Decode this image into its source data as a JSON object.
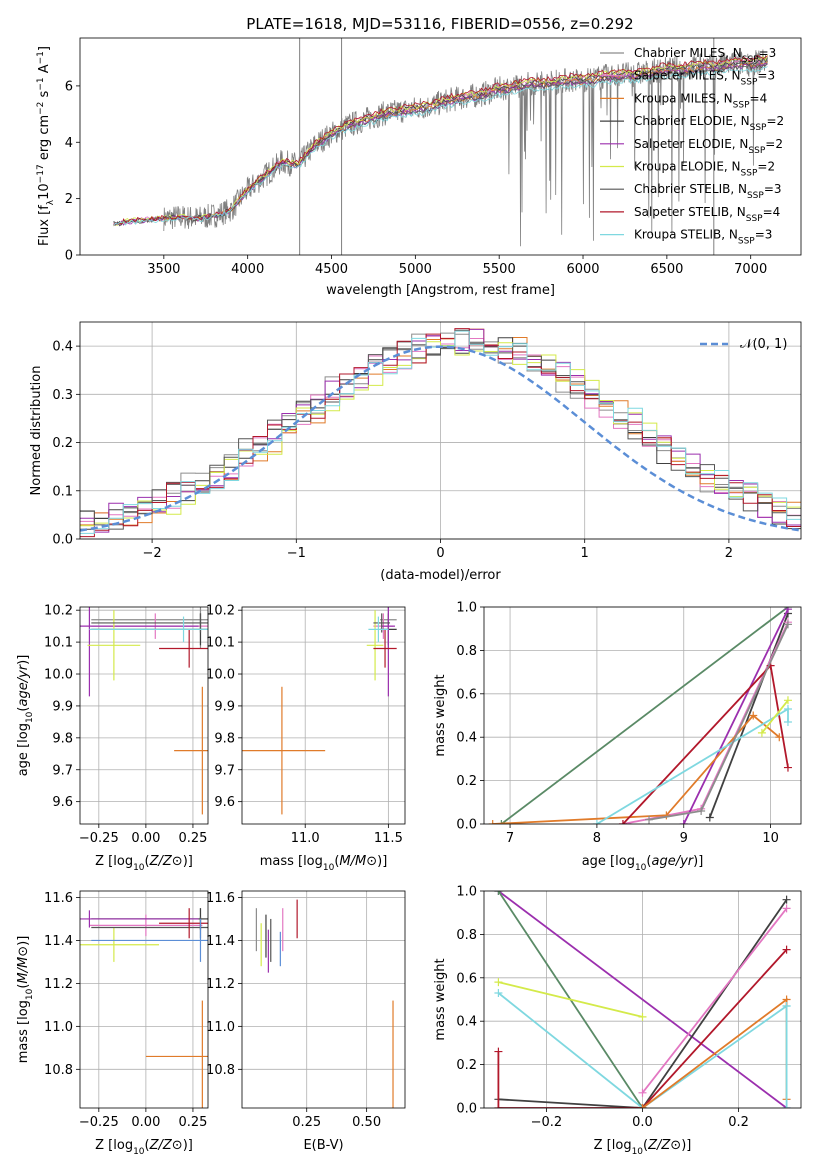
{
  "title": "PLATE=1618, MJD=53116, FIBERID=0556, z=0.292",
  "colors": {
    "chabrier_miles": "#8c8c8c",
    "salpeter_miles": "#e377c2",
    "kroupa_miles": "#e07b2a",
    "chabrier_elodie": "#404040",
    "salpeter_elodie": "#9b2fae",
    "kroupa_elodie": "#d4ea4a",
    "chabrier_stelib": "#555555",
    "salpeter_stelib": "#b2182b",
    "kroupa_stelib": "#7fd8e0",
    "gaussian": "#5b8ed6",
    "green_line": "#5a8a66",
    "grid": "#b0b0b0"
  },
  "chart_data": [
    {
      "id": "spectrum",
      "type": "line",
      "xlabel": "wavelength [Angstrom, rest frame]",
      "ylabel": "Flux [f_λ 10^-17 erg cm^-2 s^-1 A^-1]",
      "xlim": [
        3000,
        7300
      ],
      "ylim": [
        0,
        7.7
      ],
      "xticks": [
        "3500",
        "4000",
        "4500",
        "5000",
        "5500",
        "6000",
        "6500",
        "7000"
      ],
      "yticks": [
        "0",
        "2",
        "4",
        "6"
      ],
      "legend_position": "top-right",
      "legend": [
        {
          "label": "Chabrier MILES, N_SSP=3",
          "color_key": "chabrier_miles"
        },
        {
          "label": "Salpeter MILES, N_SSP=3",
          "color_key": "salpeter_miles"
        },
        {
          "label": "Kroupa MILES, N_SSP=4",
          "color_key": "kroupa_miles"
        },
        {
          "label": "Chabrier ELODIE, N_SSP=2",
          "color_key": "chabrier_elodie"
        },
        {
          "label": "Salpeter ELODIE, N_SSP=2",
          "color_key": "salpeter_elodie"
        },
        {
          "label": "Kroupa ELODIE, N_SSP=2",
          "color_key": "kroupa_elodie"
        },
        {
          "label": "Chabrier STELIB, N_SSP=3",
          "color_key": "chabrier_stelib"
        },
        {
          "label": "Salpeter STELIB, N_SSP=4",
          "color_key": "salpeter_stelib"
        },
        {
          "label": "Kroupa STELIB, N_SSP=3",
          "color_key": "kroupa_stelib"
        }
      ],
      "model_envelope": {
        "x": [
          3200,
          3300,
          3400,
          3500,
          3600,
          3700,
          3800,
          3900,
          4000,
          4100,
          4200,
          4300,
          4400,
          4500,
          4600,
          4700,
          4800,
          4900,
          5000,
          5100,
          5200,
          5300,
          5400,
          5500,
          5600,
          5700,
          5800,
          5900,
          6000,
          6100,
          6200,
          6300,
          6400,
          6500,
          6600,
          6700,
          6800,
          6900,
          7000,
          7100
        ],
        "y": [
          1.1,
          1.2,
          1.25,
          1.3,
          1.35,
          1.3,
          1.4,
          1.6,
          2.3,
          2.8,
          3.3,
          3.2,
          3.9,
          4.3,
          4.6,
          4.8,
          5.0,
          5.1,
          5.2,
          5.3,
          5.5,
          5.6,
          5.7,
          5.9,
          6.0,
          6.1,
          6.1,
          6.2,
          6.2,
          6.3,
          6.4,
          6.4,
          6.5,
          6.6,
          6.6,
          6.7,
          6.7,
          6.8,
          6.8,
          6.9
        ]
      },
      "data_range_x": [
        3500,
        7100
      ],
      "spikes_x": [
        4310,
        4560,
        6780
      ]
    },
    {
      "id": "residual-hist",
      "type": "line",
      "xlabel": "(data-model)/error",
      "ylabel": "Normed distribution",
      "xlim": [
        -2.5,
        2.5
      ],
      "ylim": [
        0,
        0.45
      ],
      "xticks": [
        "−2",
        "−1",
        "0",
        "1",
        "2"
      ],
      "yticks": [
        "0.0",
        "0.1",
        "0.2",
        "0.3",
        "0.4"
      ],
      "legend_position": "top-right",
      "legend_label": "𝒩(0, 1)",
      "bin_width": 0.1,
      "series_color_keys": [
        "chabrier_miles",
        "salpeter_miles",
        "kroupa_miles",
        "chabrier_elodie",
        "salpeter_elodie",
        "kroupa_elodie",
        "chabrier_stelib",
        "salpeter_stelib",
        "kroupa_stelib"
      ]
    },
    {
      "id": "age-vs-Z",
      "type": "scatter",
      "xlabel": "Z [log10(Z/Z⊙)]",
      "ylabel": "age [log10(age/yr)]",
      "xlim": [
        -0.35,
        0.33
      ],
      "ylim": [
        9.53,
        10.21
      ],
      "xticks": [
        "−0.25",
        "0.00",
        "0.25"
      ],
      "yticks": [
        "9.6",
        "9.7",
        "9.8",
        "9.9",
        "10.0",
        "10.1",
        "10.2"
      ],
      "points": [
        {
          "x": 0.29,
          "y": 10.17,
          "xerr": 0.58,
          "yerr": 0.09,
          "color_key": "chabrier_miles"
        },
        {
          "x": 0.05,
          "y": 10.15,
          "xerr": 0.34,
          "yerr": 0.04,
          "color_key": "salpeter_miles"
        },
        {
          "x": 0.3,
          "y": 9.76,
          "xerr": 0.15,
          "yerr": 0.2,
          "color_key": "kroupa_miles"
        },
        {
          "x": 0.29,
          "y": 10.14,
          "xerr": 0.58,
          "yerr": 0.05,
          "color_key": "chabrier_elodie"
        },
        {
          "x": -0.3,
          "y": 10.15,
          "xerr": 0.58,
          "yerr": 0.22,
          "color_key": "salpeter_elodie"
        },
        {
          "x": -0.17,
          "y": 10.09,
          "xerr": 0.14,
          "yerr": 0.11,
          "color_key": "kroupa_elodie"
        },
        {
          "x": 0.29,
          "y": 10.16,
          "xerr": 0.58,
          "yerr": 0.03,
          "color_key": "chabrier_stelib"
        },
        {
          "x": 0.23,
          "y": 10.08,
          "xerr": 0.16,
          "yerr": 0.06,
          "color_key": "salpeter_stelib"
        },
        {
          "x": 0.2,
          "y": 10.14,
          "xerr": 0.5,
          "yerr": 0.04,
          "color_key": "kroupa_stelib"
        }
      ]
    },
    {
      "id": "age-vs-mass",
      "type": "scatter",
      "xlabel": "mass [log10(M/M⊙)]",
      "ylabel": "",
      "xlim": [
        10.62,
        11.6
      ],
      "ylim": [
        9.53,
        10.21
      ],
      "xticks": [
        "11.0",
        "11.5"
      ],
      "yticks": [
        "9.6",
        "9.7",
        "9.8",
        "9.9",
        "10.0",
        "10.1",
        "10.2"
      ],
      "points": [
        {
          "x": 11.5,
          "y": 10.17,
          "xerr": 0.05,
          "yerr": 0.09,
          "color_key": "chabrier_miles"
        },
        {
          "x": 11.47,
          "y": 10.15,
          "xerr": 0.06,
          "yerr": 0.04,
          "color_key": "salpeter_miles"
        },
        {
          "x": 10.86,
          "y": 9.76,
          "xerr": 0.26,
          "yerr": 0.2,
          "color_key": "kroupa_miles"
        },
        {
          "x": 11.5,
          "y": 10.14,
          "xerr": 0.05,
          "yerr": 0.05,
          "color_key": "chabrier_elodie"
        },
        {
          "x": 11.5,
          "y": 10.15,
          "xerr": 0.04,
          "yerr": 0.22,
          "color_key": "salpeter_elodie"
        },
        {
          "x": 11.42,
          "y": 10.09,
          "xerr": 0.05,
          "yerr": 0.11,
          "color_key": "kroupa_elodie"
        },
        {
          "x": 11.46,
          "y": 10.16,
          "xerr": 0.05,
          "yerr": 0.03,
          "color_key": "chabrier_stelib"
        },
        {
          "x": 11.48,
          "y": 10.08,
          "xerr": 0.07,
          "yerr": 0.06,
          "color_key": "salpeter_stelib"
        },
        {
          "x": 11.44,
          "y": 10.14,
          "xerr": 0.06,
          "yerr": 0.04,
          "color_key": "kroupa_stelib"
        }
      ]
    },
    {
      "id": "mass-weight-vs-age",
      "type": "line",
      "xlabel": "age [log10(age/yr)]",
      "ylabel": "mass weight",
      "xlim": [
        6.7,
        10.35
      ],
      "ylim": [
        0,
        1
      ],
      "xticks": [
        "7",
        "8",
        "9",
        "10"
      ],
      "yticks": [
        "0.0",
        "0.2",
        "0.4",
        "0.6",
        "0.8",
        "1.0"
      ],
      "series": [
        {
          "color_key": "green_line",
          "x": [
            6.9,
            10.2
          ],
          "y": [
            0.0,
            1.0
          ]
        },
        {
          "color_key": "chabrier_elodie",
          "x": [
            9.3,
            10.2
          ],
          "y": [
            0.03,
            0.97
          ]
        },
        {
          "color_key": "salpeter_miles",
          "x": [
            8.3,
            9.2,
            10.2
          ],
          "y": [
            0.0,
            0.07,
            0.93
          ]
        },
        {
          "color_key": "salpeter_elodie",
          "x": [
            9.0,
            10.2
          ],
          "y": [
            0.0,
            0.99
          ]
        },
        {
          "color_key": "kroupa_miles",
          "x": [
            6.8,
            8.8,
            9.8,
            10.1
          ],
          "y": [
            0.0,
            0.04,
            0.5,
            0.4
          ]
        },
        {
          "color_key": "salpeter_stelib",
          "x": [
            8.3,
            10.0,
            10.2
          ],
          "y": [
            0.0,
            0.73,
            0.26
          ]
        },
        {
          "color_key": "kroupa_stelib",
          "x": [
            8.0,
            10.2,
            10.2
          ],
          "y": [
            0.0,
            0.53,
            0.47
          ]
        },
        {
          "color_key": "kroupa_elodie",
          "x": [
            9.9,
            10.2
          ],
          "y": [
            0.42,
            0.57
          ]
        },
        {
          "color_key": "chabrier_miles",
          "x": [
            8.6,
            9.2,
            10.2
          ],
          "y": [
            0.02,
            0.06,
            0.92
          ]
        }
      ]
    },
    {
      "id": "mass-vs-Z",
      "type": "scatter",
      "xlabel": "Z [log10(Z/Z⊙)]",
      "ylabel": "mass [log10(M/M⊙)]",
      "xlim": [
        -0.35,
        0.33
      ],
      "ylim": [
        10.62,
        11.63
      ],
      "xticks": [
        "−0.25",
        "0.00",
        "0.25"
      ],
      "yticks": [
        "10.8",
        "11.0",
        "11.2",
        "11.4",
        "11.6"
      ],
      "points": [
        {
          "x": 0.29,
          "y": 11.5,
          "xerr": 0.58,
          "yerr": 0.05,
          "color_key": "chabrier_miles"
        },
        {
          "x": 0.0,
          "y": 11.47,
          "xerr": 0.3,
          "yerr": 0.05,
          "color_key": "salpeter_miles"
        },
        {
          "x": 0.3,
          "y": 10.86,
          "xerr": 0.3,
          "yerr": 0.26,
          "color_key": "kroupa_miles"
        },
        {
          "x": 0.29,
          "y": 11.5,
          "xerr": 0.58,
          "yerr": 0.05,
          "color_key": "chabrier_elodie"
        },
        {
          "x": -0.3,
          "y": 11.5,
          "xerr": 0.58,
          "yerr": 0.04,
          "color_key": "salpeter_elodie"
        },
        {
          "x": -0.17,
          "y": 11.38,
          "xerr": 0.24,
          "yerr": 0.08,
          "color_key": "kroupa_elodie"
        },
        {
          "x": 0.29,
          "y": 11.46,
          "xerr": 0.58,
          "yerr": 0.05,
          "color_key": "chabrier_stelib"
        },
        {
          "x": 0.23,
          "y": 11.48,
          "xerr": 0.16,
          "yerr": 0.07,
          "color_key": "salpeter_stelib"
        },
        {
          "x": 0.29,
          "y": 11.4,
          "xerr": 0.58,
          "yerr": 0.1,
          "color_key": "gaussian"
        }
      ]
    },
    {
      "id": "mass-vs-ebv",
      "type": "scatter",
      "xlabel": "E(B-V)",
      "ylabel": "",
      "xlim": [
        -0.02,
        0.66
      ],
      "ylim": [
        10.62,
        11.63
      ],
      "xticks": [
        "0.25",
        "0.50"
      ],
      "yticks": [
        "10.8",
        "11.0",
        "11.2",
        "11.4",
        "11.6"
      ],
      "points": [
        {
          "x": 0.04,
          "y": 11.45,
          "xerr": 0,
          "yerr": 0.1,
          "color_key": "chabrier_miles"
        },
        {
          "x": 0.15,
          "y": 11.45,
          "xerr": 0,
          "yerr": 0.1,
          "color_key": "salpeter_miles"
        },
        {
          "x": 0.61,
          "y": 10.86,
          "xerr": 0,
          "yerr": 0.26,
          "color_key": "kroupa_miles"
        },
        {
          "x": 0.08,
          "y": 11.42,
          "xerr": 0,
          "yerr": 0.1,
          "color_key": "chabrier_elodie"
        },
        {
          "x": 0.09,
          "y": 11.35,
          "xerr": 0,
          "yerr": 0.1,
          "color_key": "salpeter_elodie"
        },
        {
          "x": 0.06,
          "y": 11.38,
          "xerr": 0,
          "yerr": 0.1,
          "color_key": "kroupa_elodie"
        },
        {
          "x": 0.1,
          "y": 11.4,
          "xerr": 0,
          "yerr": 0.1,
          "color_key": "chabrier_stelib"
        },
        {
          "x": 0.21,
          "y": 11.5,
          "xerr": 0,
          "yerr": 0.09,
          "color_key": "salpeter_stelib"
        },
        {
          "x": 0.14,
          "y": 11.36,
          "xerr": 0,
          "yerr": 0.08,
          "color_key": "gaussian"
        }
      ]
    },
    {
      "id": "mass-weight-vs-Z",
      "type": "line",
      "xlabel": "Z [log10(Z/Z⊙)]",
      "ylabel": "mass weight",
      "xlim": [
        -0.33,
        0.33
      ],
      "ylim": [
        0,
        1
      ],
      "xticks": [
        "−0.2",
        "0.0",
        "0.2"
      ],
      "yticks": [
        "0.0",
        "0.2",
        "0.4",
        "0.6",
        "0.8",
        "1.0"
      ],
      "series": [
        {
          "color_key": "salpeter_elodie",
          "x": [
            -0.3,
            0.3
          ],
          "y": [
            1.0,
            0.0
          ]
        },
        {
          "color_key": "green_line",
          "x": [
            -0.3,
            0.0
          ],
          "y": [
            1.0,
            0.0
          ]
        },
        {
          "color_key": "kroupa_elodie",
          "x": [
            -0.3,
            0.0
          ],
          "y": [
            0.58,
            0.42
          ]
        },
        {
          "color_key": "kroupa_stelib",
          "x": [
            -0.3,
            0.0,
            0.3
          ],
          "y": [
            0.53,
            0.0,
            0.47
          ]
        },
        {
          "color_key": "chabrier_elodie",
          "x": [
            -0.3,
            0.0,
            0.3
          ],
          "y": [
            0.04,
            0.0,
            0.96
          ]
        },
        {
          "color_key": "salpeter_miles",
          "x": [
            0.0,
            0.3
          ],
          "y": [
            0.07,
            0.92
          ]
        },
        {
          "color_key": "salpeter_stelib",
          "x": [
            -0.3,
            -0.3,
            0.0,
            0.3
          ],
          "y": [
            0.26,
            0.0,
            0.0,
            0.73
          ]
        },
        {
          "color_key": "kroupa_miles",
          "x": [
            0.0,
            0.3,
            0.3
          ],
          "y": [
            0.0,
            0.5,
            0.04
          ]
        },
        {
          "color_key": "kroupa_stelib",
          "x": [
            0.3,
            0.3
          ],
          "y": [
            0.47,
            0.0
          ]
        }
      ]
    }
  ]
}
